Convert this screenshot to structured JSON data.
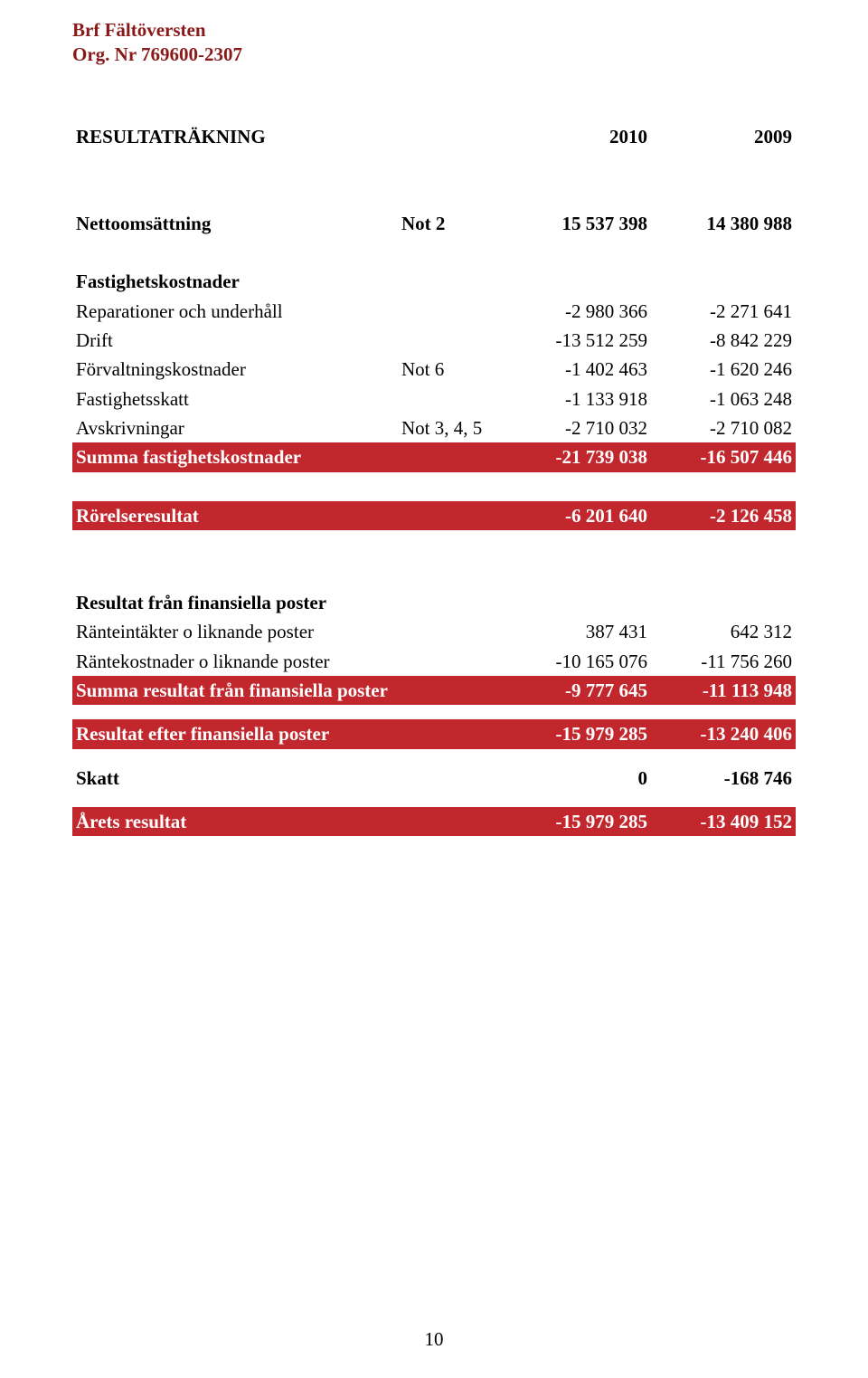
{
  "colors": {
    "brand": "#8a1a1a",
    "highlight": "#c1272d",
    "background": "#ffffff",
    "text": "#000000"
  },
  "header": {
    "line1": "Brf Fältöversten",
    "line2": "Org. Nr 769600-2307"
  },
  "table": {
    "title": "RESULTATRÄKNING",
    "year1": "2010",
    "year2": "2009",
    "groups": [
      {
        "rows": [
          {
            "label": "Nettoomsättning",
            "note": "Not 2",
            "v1": "15 537 398",
            "v2": "14 380 988",
            "bold": true
          }
        ]
      },
      {
        "heading": "Fastighetskostnader",
        "rows": [
          {
            "label": "Reparationer och underhåll",
            "note": "",
            "v1": "-2 980 366",
            "v2": "-2 271 641"
          },
          {
            "label": "Drift",
            "note": "",
            "v1": "-13 512 259",
            "v2": "-8 842 229"
          },
          {
            "label": "Förvaltningskostnader",
            "note": "Not 6",
            "v1": "-1 402 463",
            "v2": "-1 620 246"
          },
          {
            "label": "Fastighetsskatt",
            "note": "",
            "v1": "-1 133 918",
            "v2": "-1 063 248"
          },
          {
            "label": "Avskrivningar",
            "note": "Not 3, 4, 5",
            "v1": "-2 710 032",
            "v2": "-2 710 082"
          }
        ],
        "total": {
          "label": "Summa fastighetskostnader",
          "v1": "-21 739 038",
          "v2": "-16 507 446"
        }
      },
      {
        "total": {
          "label": "Rörelseresultat",
          "v1": "-6 201 640",
          "v2": "-2 126 458"
        }
      },
      {
        "heading": "Resultat från finansiella poster",
        "rows": [
          {
            "label": "Ränteintäkter o liknande poster",
            "note": "",
            "v1": "387 431",
            "v2": "642 312"
          },
          {
            "label": "Räntekostnader o liknande poster",
            "note": "",
            "v1": "-10 165 076",
            "v2": "-11 756 260"
          }
        ],
        "total": {
          "label": "Summa resultat från finansiella poster",
          "v1": "-9 777 645",
          "v2": "-11 113 948"
        }
      },
      {
        "total": {
          "label": "Resultat efter finansiella poster",
          "v1": "-15 979 285",
          "v2": "-13 240 406"
        }
      },
      {
        "rows": [
          {
            "label": "Skatt",
            "note": "",
            "v1": "0",
            "v2": "-168 746",
            "bold": true
          }
        ]
      },
      {
        "total": {
          "label": "Årets resultat",
          "v1": "-15 979 285",
          "v2": "-13 409 152"
        }
      }
    ]
  },
  "page_number": "10"
}
